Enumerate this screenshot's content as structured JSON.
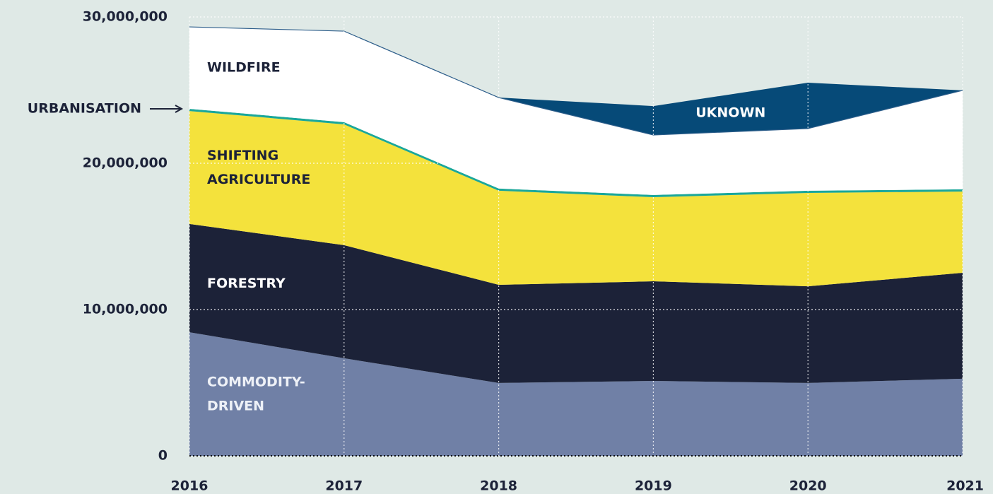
{
  "chart_data": {
    "type": "stacked_area",
    "categories": [
      "2016",
      "2017",
      "2018",
      "2019",
      "2020",
      "2021"
    ],
    "series": [
      {
        "name": "COMMODITY-DRIVEN",
        "color": "#7080a6",
        "values": [
          8450000,
          6670000,
          4980000,
          5120000,
          4980000,
          5270000
        ]
      },
      {
        "name": "FORESTRY",
        "color": "#1c2238",
        "values": [
          7400000,
          7730000,
          6710000,
          6810000,
          6610000,
          7240000
        ]
      },
      {
        "name": "SHIFTING AGRICULTURE",
        "color": "#f4e23c",
        "values": [
          7720000,
          8260000,
          6430000,
          5750000,
          6380000,
          5560000
        ]
      },
      {
        "name": "URBANISATION",
        "color": "#1aa79a",
        "values": [
          150000,
          150000,
          150000,
          150000,
          150000,
          150000
        ]
      },
      {
        "name": "WILDFIRE",
        "color": "#ffffff",
        "values": [
          5600000,
          6220000,
          6220000,
          4100000,
          4250000,
          6760000
        ]
      },
      {
        "name": "UKNOWN",
        "color": "#064a78",
        "values": [
          null,
          null,
          0,
          1980000,
          3140000,
          0
        ]
      }
    ],
    "ylim": [
      0,
      30000000
    ],
    "yticks": [
      0,
      {
        "value": 10000000,
        "label": "10,000,000"
      },
      {
        "value": 20000000,
        "label": "20,000,000"
      },
      {
        "value": 30000000,
        "label": "30,000,000"
      }
    ],
    "grid": true
  }
}
